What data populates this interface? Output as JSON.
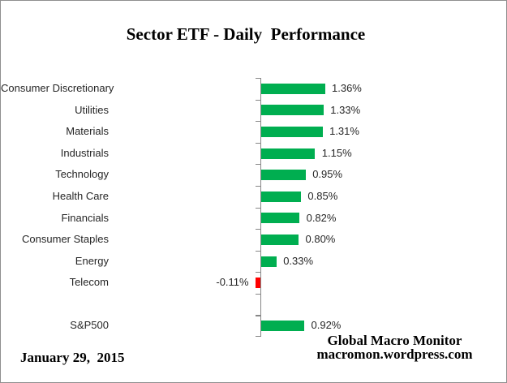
{
  "title": "Sector ETF - Daily  Performance",
  "chart_data": {
    "type": "bar",
    "orientation": "horizontal",
    "unit": "percent",
    "categories": [
      "Consumer Discretionary",
      "Utilities",
      "Materials",
      "Industrials",
      "Technology",
      "Health Care",
      "Financials",
      "Consumer Staples",
      "Energy",
      "Telecom",
      "",
      "S&P500"
    ],
    "values": [
      1.36,
      1.33,
      1.31,
      1.15,
      0.95,
      0.85,
      0.82,
      0.8,
      0.33,
      -0.11,
      null,
      0.92
    ],
    "value_labels": [
      "1.36%",
      "1.33%",
      "1.31%",
      "1.15%",
      "0.95%",
      "0.85%",
      "0.82%",
      "0.80%",
      "0.33%",
      "-0.11%",
      "",
      "0.92%"
    ],
    "colors": {
      "positive_bar": "#00AE50",
      "negative_bar": "#FF0000",
      "axis": "#878787",
      "label_text": "#262626"
    },
    "grid": false,
    "legend": false
  },
  "footer": {
    "date": "January 29,  2015",
    "attribution_line1": "Global Macro Monitor",
    "attribution_line2": "macromon.wordpress.com"
  }
}
